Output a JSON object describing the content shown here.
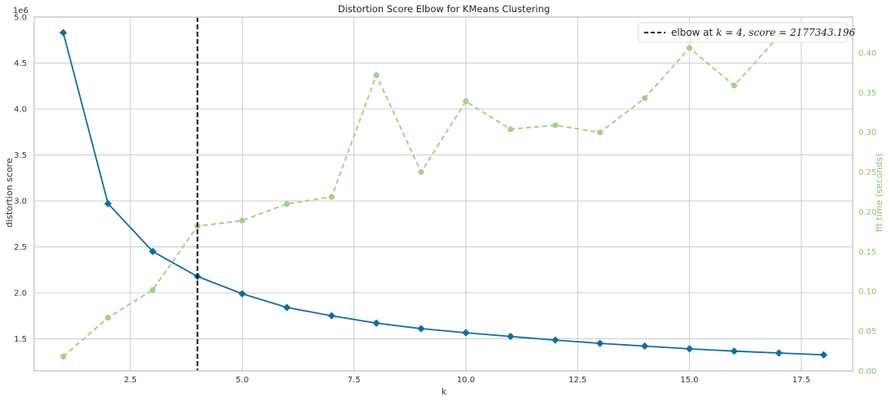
{
  "chart_data": {
    "type": "line",
    "title": "Distortion Score Elbow for KMeans Clustering",
    "xlabel": "k",
    "ylabel": "distortion score",
    "y2label": "fit time (seconds)",
    "y_offset_label": "1e6",
    "xlim": [
      0.35,
      18.65
    ],
    "ylim": [
      1150000,
      5000000
    ],
    "y2lim": [
      0.0,
      0.445
    ],
    "x_ticks": [
      2.5,
      5.0,
      7.5,
      10.0,
      12.5,
      15.0,
      17.5
    ],
    "x_tick_labels": [
      "2.5",
      "5.0",
      "7.5",
      "10.0",
      "12.5",
      "15.0",
      "17.5"
    ],
    "y_ticks": [
      1500000,
      2000000,
      2500000,
      3000000,
      3500000,
      4000000,
      4500000,
      5000000
    ],
    "y_tick_labels": [
      "1.5",
      "2.0",
      "2.5",
      "3.0",
      "3.5",
      "4.0",
      "4.5",
      "5.0"
    ],
    "y2_ticks": [
      0.0,
      0.05,
      0.1,
      0.15,
      0.2,
      0.25,
      0.3,
      0.35,
      0.4
    ],
    "y2_tick_labels": [
      "0.00",
      "0.05",
      "0.10",
      "0.15",
      "0.20",
      "0.25",
      "0.30",
      "0.35",
      "0.40"
    ],
    "grid": true,
    "x": [
      1,
      2,
      3,
      4,
      5,
      6,
      7,
      8,
      9,
      10,
      11,
      12,
      13,
      14,
      15,
      16,
      17,
      18
    ],
    "series": [
      {
        "axis": "left",
        "color": "#0e6f9a",
        "marker": "diamond",
        "values": [
          4830000,
          2970000,
          2450000,
          2177343,
          1990000,
          1840000,
          1750000,
          1670000,
          1610000,
          1565000,
          1525000,
          1485000,
          1450000,
          1420000,
          1390000,
          1365000,
          1345000,
          1325000
        ]
      },
      {
        "axis": "right",
        "color": "#a6cf8c",
        "marker": "circle",
        "dashed": true,
        "values": [
          0.018,
          0.067,
          0.102,
          0.182,
          0.189,
          0.21,
          0.219,
          0.372,
          0.25,
          0.339,
          0.304,
          0.309,
          0.3,
          0.343,
          0.406,
          0.359,
          0.421,
          0.425
        ]
      }
    ],
    "elbow": {
      "x": 4,
      "legend_prefix": "elbow at ",
      "legend_math": "k = 4, score = 2177343.196",
      "legend_placement": "top-right",
      "color": "#111111"
    }
  }
}
